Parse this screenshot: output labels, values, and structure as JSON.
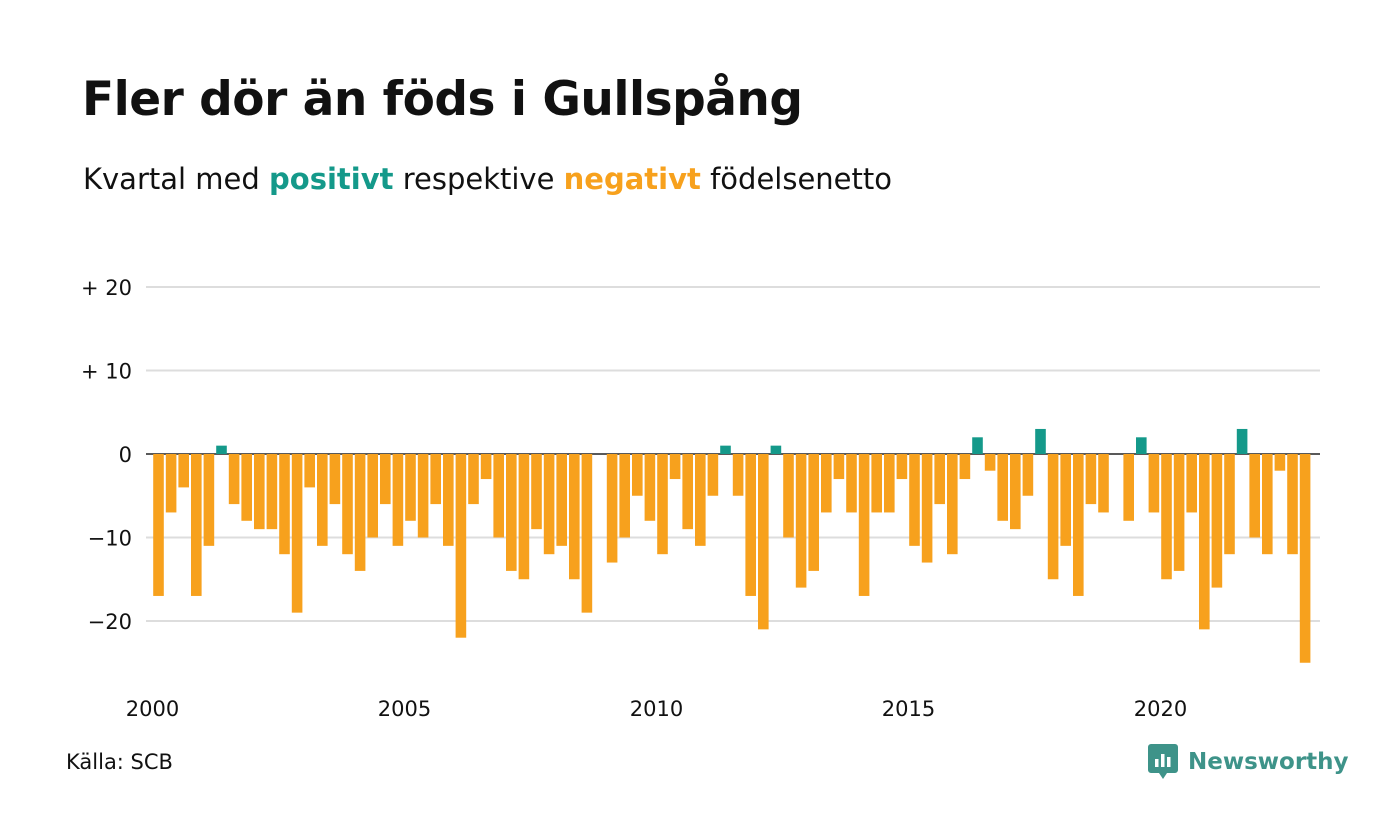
{
  "title": "Fler dör än föds i Gullspång",
  "subtitle": {
    "prefix": "Kvartal med ",
    "positive": "positivt",
    "middle": " respektive ",
    "negative": "negativt",
    "suffix": " födelsenetto"
  },
  "source": "Källa: SCB",
  "brand": {
    "name": "Newsworthy",
    "icon": "newsworthy-logo-icon"
  },
  "colors": {
    "positive": "#14998a",
    "negative": "#f7a11d",
    "brand": "#3e9389",
    "grid": "#dddddd",
    "text": "#111111"
  },
  "chart_data": {
    "type": "bar",
    "title": "Fler dör än föds i Gullspång",
    "subtitle": "Kvartal med positivt respektive negativt födelsenetto",
    "xlabel": "",
    "ylabel": "",
    "x_start": 2000,
    "periods_per_year": 4,
    "x_ticks": [
      "2000",
      "2005",
      "2010",
      "2015",
      "2020"
    ],
    "y_ticks": [
      {
        "value": 20,
        "label": "+ 20"
      },
      {
        "value": 10,
        "label": "+ 10"
      },
      {
        "value": 0,
        "label": "0"
      },
      {
        "value": -10,
        "label": "−10"
      },
      {
        "value": -20,
        "label": "−20"
      }
    ],
    "ylim": [
      -27,
      20
    ],
    "grid": true,
    "legend": "none",
    "values": [
      -17,
      -7,
      -4,
      -17,
      -11,
      1,
      -6,
      -8,
      -9,
      -9,
      -12,
      -19,
      -4,
      -11,
      -6,
      -12,
      -14,
      -10,
      -6,
      -11,
      -8,
      -10,
      -6,
      -11,
      -22,
      -6,
      -3,
      -10,
      -14,
      -15,
      -9,
      -12,
      -11,
      -15,
      -19,
      0,
      -13,
      -10,
      -5,
      -8,
      -12,
      -3,
      -9,
      -11,
      -5,
      1,
      -5,
      -17,
      -21,
      1,
      -10,
      -16,
      -14,
      -7,
      -3,
      -7,
      -17,
      -7,
      -7,
      -3,
      -11,
      -13,
      -6,
      -12,
      -3,
      2,
      -2,
      -8,
      -9,
      -5,
      3,
      -15,
      -11,
      -17,
      -6,
      -7,
      0,
      -8,
      2,
      -7,
      -15,
      -14,
      -7,
      -21,
      -16,
      -12,
      3,
      -10,
      -12,
      -2,
      -12,
      -25
    ]
  }
}
